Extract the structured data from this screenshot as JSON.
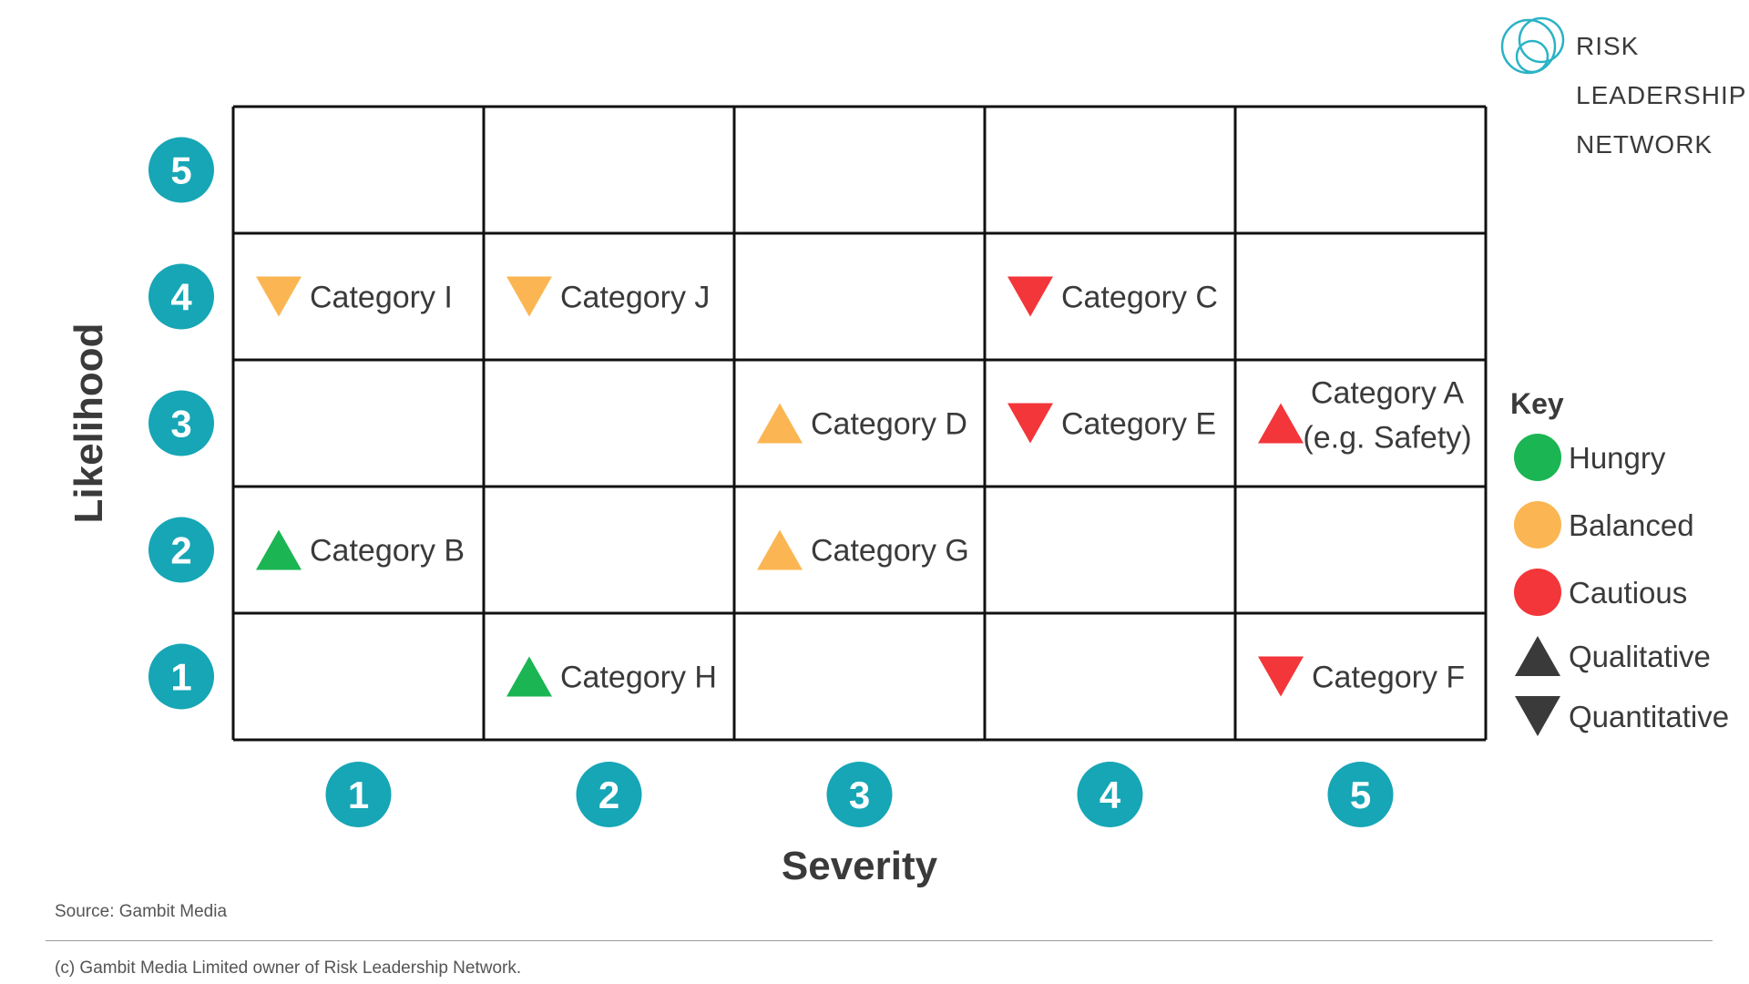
{
  "chart_data": {
    "type": "scatter",
    "xlabel": "Severity",
    "ylabel": "Likelihood",
    "x_ticks": [
      "1",
      "2",
      "3",
      "4",
      "5"
    ],
    "y_ticks": [
      "1",
      "2",
      "3",
      "4",
      "5"
    ],
    "xlim": [
      1,
      5
    ],
    "ylim": [
      1,
      5
    ],
    "grid": true,
    "legend": {
      "title": "Key",
      "placement": "right",
      "entries": [
        {
          "label": "Hungry",
          "marker": "circle",
          "color": "#1bb553"
        },
        {
          "label": "Balanced",
          "marker": "circle",
          "color": "#fbb653"
        },
        {
          "label": "Cautious",
          "marker": "circle",
          "color": "#f2363a"
        },
        {
          "label": "Qualitative",
          "marker": "triangle-up",
          "color": "#3a3a3a"
        },
        {
          "label": "Quantitative",
          "marker": "triangle-down",
          "color": "#3a3a3a"
        }
      ]
    },
    "points": [
      {
        "label": "Category I",
        "severity": 1,
        "likelihood": 4,
        "appetite": "Balanced",
        "type": "Quantitative"
      },
      {
        "label": "Category J",
        "severity": 2,
        "likelihood": 4,
        "appetite": "Balanced",
        "type": "Quantitative"
      },
      {
        "label": "Category C",
        "severity": 4,
        "likelihood": 4,
        "appetite": "Cautious",
        "type": "Quantitative"
      },
      {
        "label": "Category D",
        "severity": 3,
        "likelihood": 3,
        "appetite": "Balanced",
        "type": "Qualitative"
      },
      {
        "label": "Category E",
        "severity": 4,
        "likelihood": 3,
        "appetite": "Cautious",
        "type": "Quantitative"
      },
      {
        "label": "Category A",
        "label_line2": "(e.g. Safety)",
        "severity": 5,
        "likelihood": 3,
        "appetite": "Cautious",
        "type": "Qualitative"
      },
      {
        "label": "Category B",
        "severity": 1,
        "likelihood": 2,
        "appetite": "Hungry",
        "type": "Qualitative"
      },
      {
        "label": "Category G",
        "severity": 3,
        "likelihood": 2,
        "appetite": "Balanced",
        "type": "Qualitative"
      },
      {
        "label": "Category H",
        "severity": 2,
        "likelihood": 1,
        "appetite": "Hungry",
        "type": "Qualitative"
      },
      {
        "label": "Category F",
        "severity": 5,
        "likelihood": 1,
        "appetite": "Cautious",
        "type": "Quantitative"
      }
    ]
  },
  "colors": {
    "badge": "#16a6b6",
    "grid": "#111111",
    "text": "#3a3a3a",
    "logo_ring": "#2ab3c5"
  },
  "brand": {
    "logo_lines": [
      "RISK",
      "LEADERSHIP",
      "NETWORK"
    ],
    "logo_icon": "interlocking-rings-icon"
  },
  "footer": {
    "source": "Source: Gambit Media",
    "copyright": "(c) Gambit Media Limited owner of Risk Leadership Network."
  }
}
